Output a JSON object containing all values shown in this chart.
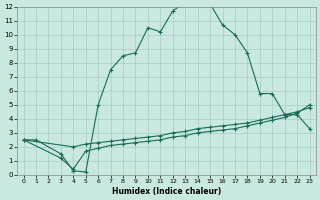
{
  "xlabel": "Humidex (Indice chaleur)",
  "bg_color": "#c8e8e0",
  "grid_color": "#a8cccc",
  "line_color": "#1a6b5a",
  "xlim": [
    -0.5,
    23.5
  ],
  "ylim": [
    0,
    12
  ],
  "x_ticks": [
    0,
    1,
    2,
    3,
    4,
    5,
    6,
    7,
    8,
    9,
    10,
    11,
    12,
    13,
    14,
    15,
    16,
    17,
    18,
    19,
    20,
    21,
    22,
    23
  ],
  "y_ticks": [
    0,
    1,
    2,
    3,
    4,
    5,
    6,
    7,
    8,
    9,
    10,
    11,
    12
  ],
  "series": [
    {
      "x": [
        0,
        1,
        3,
        4,
        5,
        6,
        7,
        8,
        9,
        10,
        11,
        12,
        13,
        14,
        15,
        16,
        17,
        18,
        19,
        20,
        21,
        22,
        23
      ],
      "y": [
        2.5,
        2.5,
        1.5,
        0.3,
        0.2,
        5.0,
        7.5,
        8.5,
        8.7,
        10.5,
        10.2,
        11.7,
        12.3,
        12.2,
        12.2,
        10.7,
        10.0,
        8.7,
        5.8,
        5.8,
        4.3,
        4.3,
        3.3
      ]
    },
    {
      "x": [
        0,
        4,
        5,
        6,
        7,
        8,
        9,
        10,
        11,
        12,
        13,
        14,
        15,
        16,
        17,
        18,
        19,
        20,
        21,
        22,
        23
      ],
      "y": [
        2.5,
        2.0,
        2.2,
        2.3,
        2.4,
        2.5,
        2.6,
        2.7,
        2.8,
        3.0,
        3.1,
        3.3,
        3.4,
        3.5,
        3.6,
        3.7,
        3.9,
        4.1,
        4.3,
        4.5,
        4.8
      ]
    },
    {
      "x": [
        0,
        3,
        4,
        5,
        6,
        7,
        8,
        9,
        10,
        11,
        12,
        13,
        14,
        15,
        16,
        17,
        18,
        19,
        20,
        21,
        22,
        23
      ],
      "y": [
        2.5,
        1.2,
        0.4,
        1.7,
        1.9,
        2.1,
        2.2,
        2.3,
        2.4,
        2.5,
        2.7,
        2.8,
        3.0,
        3.1,
        3.2,
        3.3,
        3.5,
        3.7,
        3.9,
        4.1,
        4.4,
        5.0
      ]
    }
  ]
}
